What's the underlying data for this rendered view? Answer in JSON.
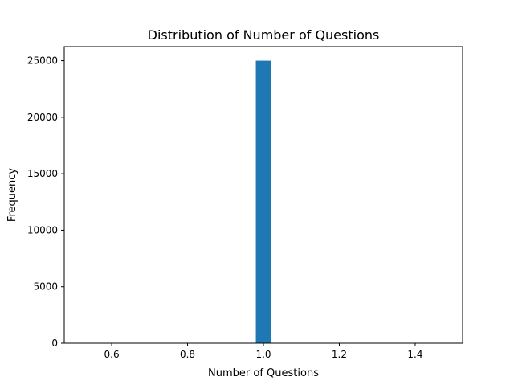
{
  "chart_data": {
    "type": "bar",
    "title": "Distribution of Number of Questions",
    "xlabel": "Number of Questions",
    "ylabel": "Frequency",
    "xlim": [
      0.475,
      1.525
    ],
    "ylim": [
      0,
      26250
    ],
    "xticks": [
      0.6,
      0.8,
      1.0,
      1.2,
      1.4
    ],
    "xtick_labels": [
      "0.6",
      "0.8",
      "1.0",
      "1.2",
      "1.4"
    ],
    "yticks": [
      0,
      5000,
      10000,
      15000,
      20000,
      25000
    ],
    "ytick_labels": [
      "0",
      "5000",
      "10000",
      "15000",
      "20000",
      "25000"
    ],
    "bar_color": "#1f77b4",
    "bars": [
      {
        "x_start": 0.98,
        "x_end": 1.02,
        "value": 25000
      }
    ],
    "grid": false
  }
}
